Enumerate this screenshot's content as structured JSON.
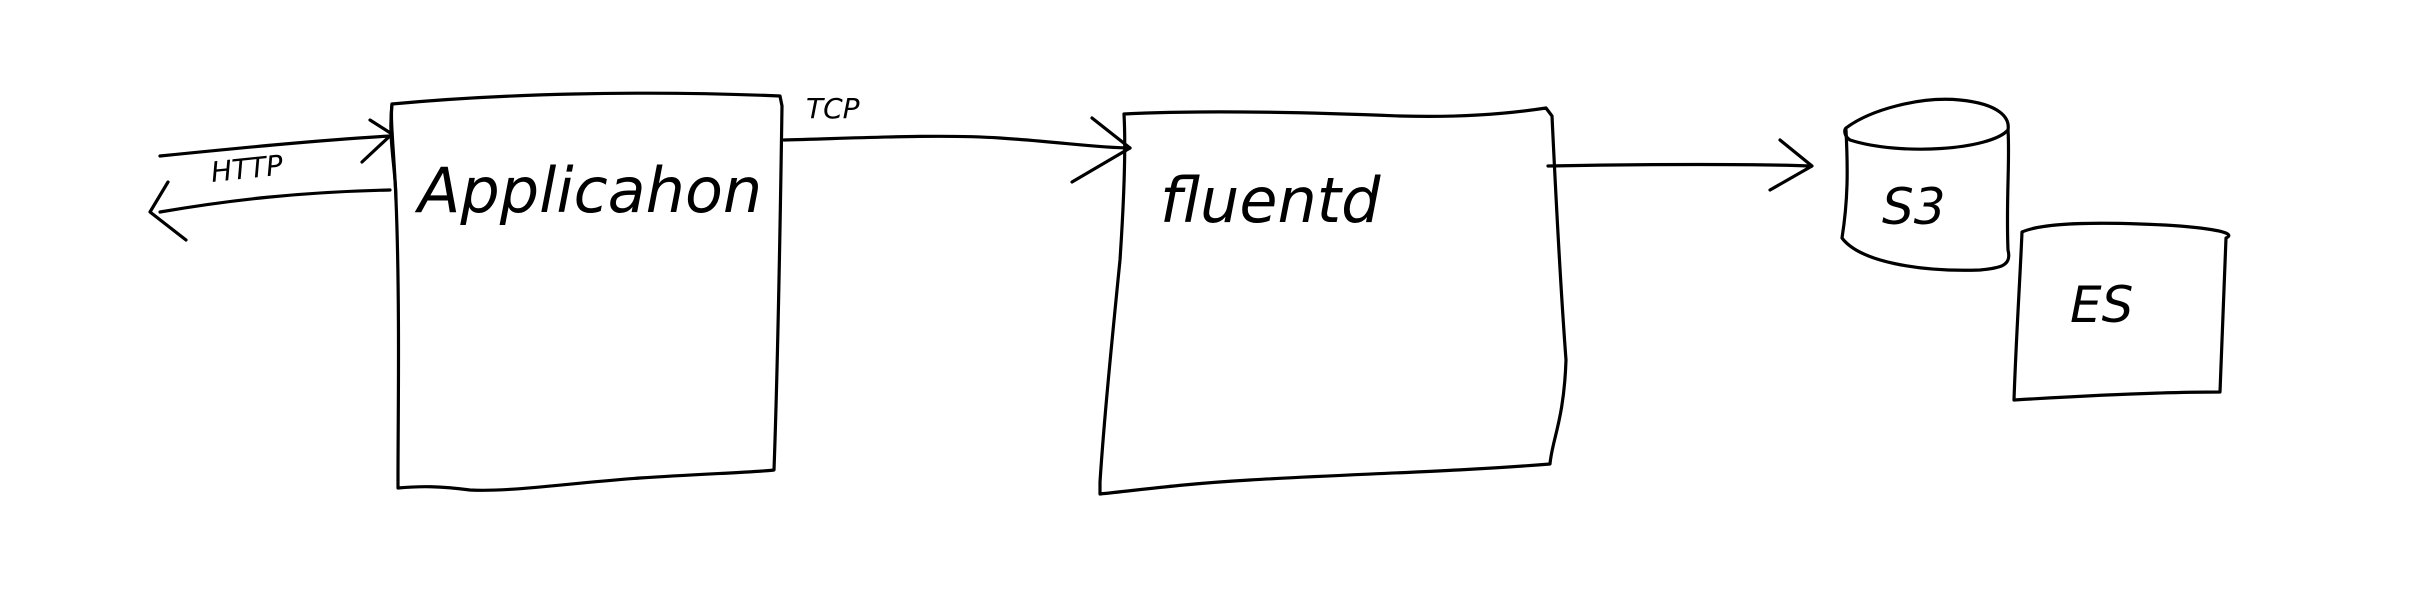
{
  "nodes": {
    "application": {
      "label": "Applicahon"
    },
    "fluentd": {
      "label": "fluentd"
    },
    "s3": {
      "label": "S3"
    },
    "es": {
      "label": "ES"
    }
  },
  "edges": {
    "http": {
      "label": "HTTP"
    },
    "tcp": {
      "label": "TCP"
    }
  }
}
